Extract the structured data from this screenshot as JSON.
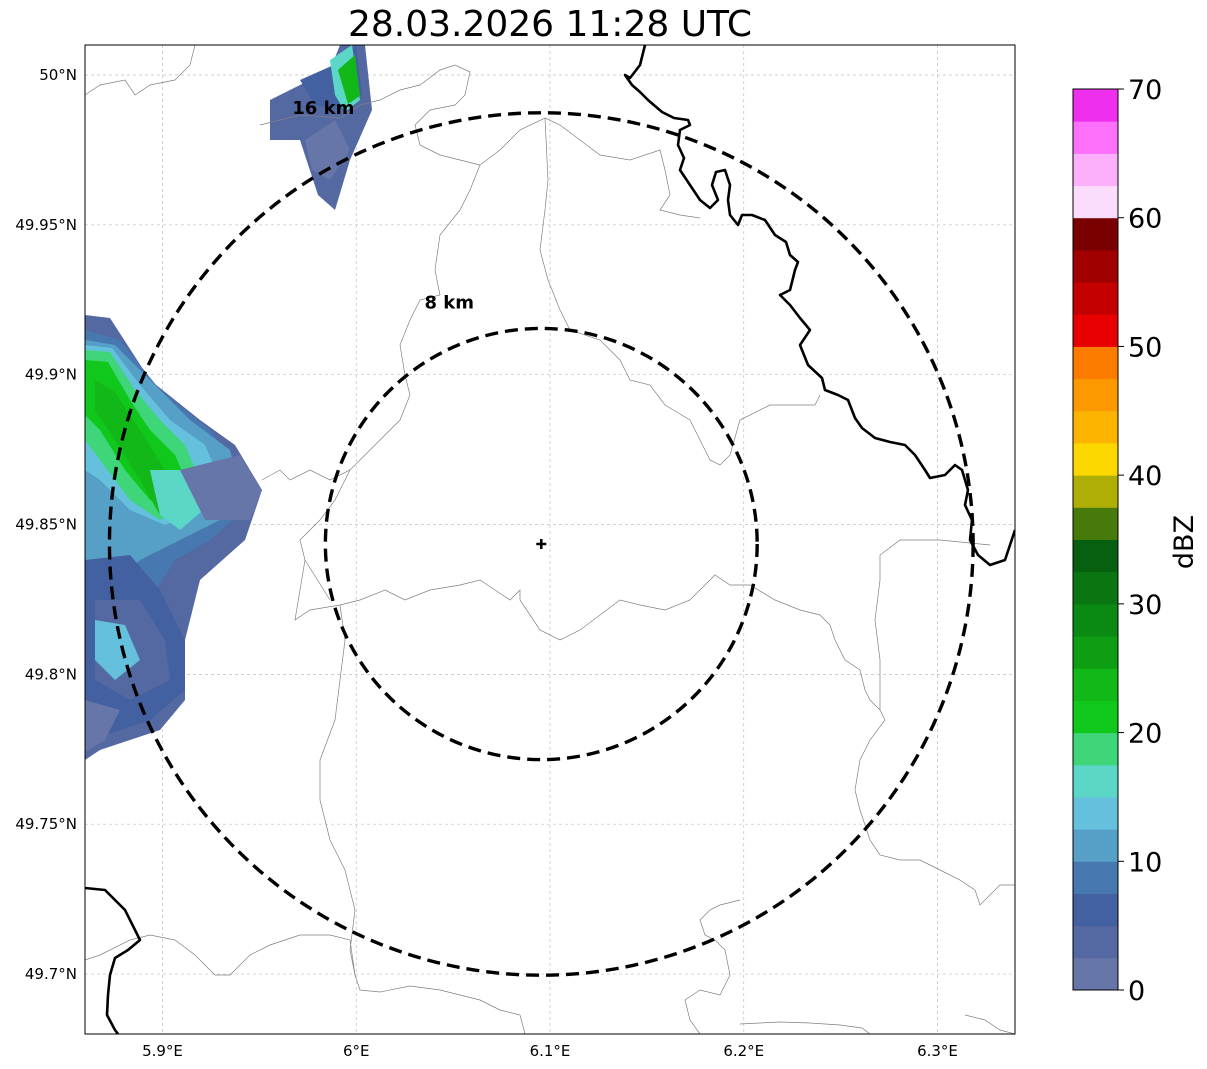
{
  "title": "28.03.2026 11:28 UTC",
  "map": {
    "lon_range": [
      5.86,
      6.34
    ],
    "lat_range": [
      49.68,
      50.01
    ],
    "lon_ticks": [
      {
        "value": 5.9,
        "label": "5.9°E"
      },
      {
        "value": 6.0,
        "label": "6°E"
      },
      {
        "value": 6.1,
        "label": "6.1°E"
      },
      {
        "value": 6.2,
        "label": "6.2°E"
      },
      {
        "value": 6.3,
        "label": "6.3°E"
      }
    ],
    "lat_ticks": [
      {
        "value": 49.7,
        "label": "49.7°N"
      },
      {
        "value": 49.75,
        "label": "49.75°N"
      },
      {
        "value": 49.8,
        "label": "49.8°N"
      },
      {
        "value": 49.85,
        "label": "49.85°N"
      },
      {
        "value": 49.9,
        "label": "49.9°N"
      },
      {
        "value": 49.95,
        "label": "49.95°N"
      },
      {
        "value": 50.0,
        "label": "50°N"
      }
    ],
    "gridlines": true,
    "radar_site": {
      "lon": 6.0955,
      "lat": 49.8435,
      "icon": "plus-marker-icon"
    },
    "range_rings": [
      {
        "radius_km": 8,
        "label": "8 km",
        "label_lon": 6.048,
        "label_lat": 49.922
      },
      {
        "radius_km": 16,
        "label": "16 km",
        "label_lon": 5.983,
        "label_lat": 49.987
      }
    ],
    "colors": {
      "ring": "#000000",
      "border": "#000000",
      "admin_lines": "#808080",
      "grid": "#c0c0c0"
    }
  },
  "colorbar": {
    "label": "dBZ",
    "min": 0,
    "max": 70,
    "step": 2.5,
    "tick_labels": [
      "0",
      "10",
      "20",
      "30",
      "40",
      "50",
      "60",
      "70"
    ],
    "tick_values": [
      0,
      10,
      20,
      30,
      40,
      50,
      60,
      70
    ],
    "colors": [
      "#6676a8",
      "#5468a2",
      "#4360a0",
      "#4878b0",
      "#56a0c8",
      "#64c0dc",
      "#5cd6c6",
      "#3ed678",
      "#10c81c",
      "#12b818",
      "#0e9e14",
      "#0a8a12",
      "#097612",
      "#06600f",
      "#467a0a",
      "#aeae06",
      "#fcd800",
      "#fcb400",
      "#fc9800",
      "#fc7c00",
      "#e80000",
      "#c40000",
      "#a00000",
      "#780000",
      "#fcdcfc",
      "#fcb0fc",
      "#fc70fc",
      "#ee30ee"
    ]
  }
}
